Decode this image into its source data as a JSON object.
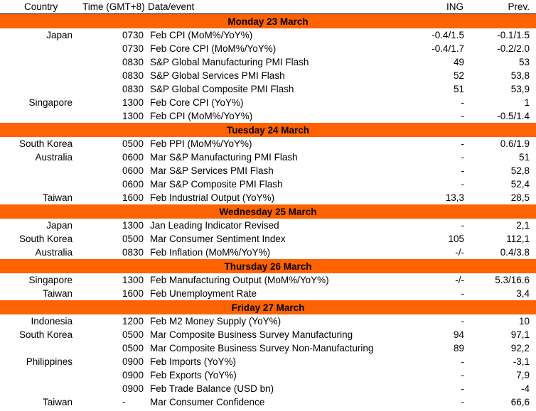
{
  "header": {
    "country": "Country",
    "time": "Time (GMT+8)",
    "event": "Data/event",
    "ing": "ING",
    "prev": "Prev."
  },
  "sections": [
    {
      "day": "Monday 23 March",
      "rows": [
        {
          "country": "Japan",
          "time": "0730",
          "event": "Feb CPI (MoM%/YoY%)",
          "ing": "-0.4/1.5",
          "prev": "-0.1/1.5"
        },
        {
          "country": "",
          "time": "0730",
          "event": "Feb Core CPI (MoM%/YoY%)",
          "ing": "-0.4/1.7",
          "prev": "-0.2/2.0"
        },
        {
          "country": "",
          "time": "0830",
          "event": "S&P Global Manufacturing PMI Flash",
          "ing": "49",
          "prev": "53"
        },
        {
          "country": "",
          "time": "0830",
          "event": "S&P Global Services PMI Flash",
          "ing": "52",
          "prev": "53,8"
        },
        {
          "country": "",
          "time": "0830",
          "event": "S&P Global Composite PMI Flash",
          "ing": "51",
          "prev": "53,9"
        },
        {
          "country": "Singapore",
          "time": "1300",
          "event": "Feb Core CPI (YoY%)",
          "ing": "-",
          "prev": "1"
        },
        {
          "country": "",
          "time": "1300",
          "event": "Feb CPI (MoM%/YoY%)",
          "ing": "-",
          "prev": "-0.5/1.4"
        }
      ]
    },
    {
      "day": "Tuesday 24 March",
      "rows": [
        {
          "country": "South Korea",
          "time": "0500",
          "event": "Feb PPI (MoM%/YoY%)",
          "ing": "-",
          "prev": "0.6/1.9"
        },
        {
          "country": "Australia",
          "time": "0600",
          "event": "Mar S&P Manufacturing PMI Flash",
          "ing": "-",
          "prev": "51"
        },
        {
          "country": "",
          "time": "0600",
          "event": "Mar S&P Services PMI Flash",
          "ing": "-",
          "prev": "52,8"
        },
        {
          "country": "",
          "time": "0600",
          "event": "Mar S&P Composite PMI Flash",
          "ing": "-",
          "prev": "52,4"
        },
        {
          "country": "Taiwan",
          "time": "1600",
          "event": "Feb Industrial Output (YoY%)",
          "ing": "13,3",
          "prev": "28,5"
        }
      ]
    },
    {
      "day": "Wednesday 25 March",
      "rows": [
        {
          "country": "Japan",
          "time": "1300",
          "event": "Jan Leading Indicator Revised",
          "ing": "-",
          "prev": "2,1"
        },
        {
          "country": "South Korea",
          "time": "0500",
          "event": "Mar Consumer Sentiment Index",
          "ing": "105",
          "prev": "112,1"
        },
        {
          "country": "Australia",
          "time": "0830",
          "event": "Feb Inflation (MoM%/YoY%)",
          "ing": "-/-",
          "prev": "0.4/3.8"
        }
      ]
    },
    {
      "day": "Thursday 26 March",
      "rows": [
        {
          "country": "Singapore",
          "time": "1300",
          "event": "Feb Manufacturing Output (MoM%/YoY%)",
          "ing": "-/-",
          "prev": "5.3/16.6"
        },
        {
          "country": "Taiwan",
          "time": "1600",
          "event": "Feb Unemployment Rate",
          "ing": "-",
          "prev": "3,4"
        }
      ]
    },
    {
      "day": "Friday 27 March",
      "rows": [
        {
          "country": "Indonesia",
          "time": "1200",
          "event": "Feb M2 Money Supply (YoY%)",
          "ing": "-",
          "prev": "10"
        },
        {
          "country": "South Korea",
          "time": "0500",
          "event": "Mar Composite Business Survey Manufacturing",
          "ing": "94",
          "prev": "97,1"
        },
        {
          "country": "",
          "time": "0500",
          "event": "Mar Composite Business Survey Non-Manufacturing",
          "ing": "89",
          "prev": "92,2"
        },
        {
          "country": "Philippines",
          "time": "0900",
          "event": "Feb Imports (YoY%)",
          "ing": "-",
          "prev": "-3,1"
        },
        {
          "country": "",
          "time": "0900",
          "event": "Feb Exports (YoY%)",
          "ing": "-",
          "prev": "7,9"
        },
        {
          "country": "",
          "time": "0900",
          "event": "Feb Trade Balance (USD bn)",
          "ing": "-",
          "prev": "-4"
        },
        {
          "country": "Taiwan",
          "time": "-",
          "event": "Mar Consumer Confidence",
          "ing": "-",
          "prev": "66,6"
        }
      ]
    }
  ]
}
